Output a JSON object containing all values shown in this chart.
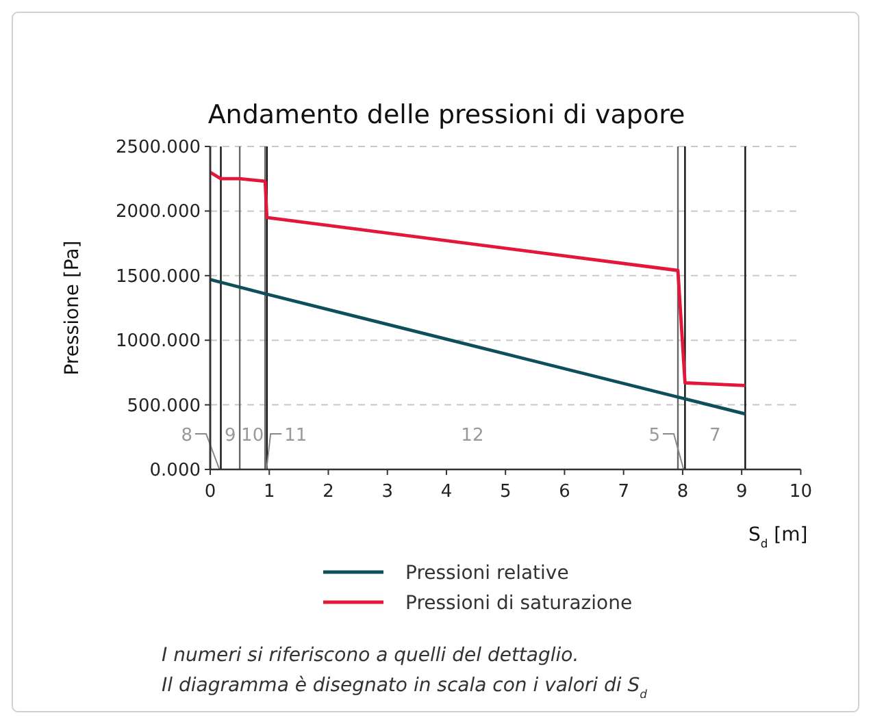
{
  "chart_data": {
    "type": "line",
    "title": "Andamento delle pressioni di vapore",
    "xlabel": "S$_{d}$ [m]",
    "ylabel": "Pressione [Pa]",
    "xlim": [
      0,
      10
    ],
    "xticks": [
      0,
      1,
      2,
      3,
      4,
      5,
      6,
      7,
      8,
      9,
      10
    ],
    "ylim": [
      0,
      2500
    ],
    "yticks": [
      {
        "value": 0,
        "label": "0.000"
      },
      {
        "value": 500,
        "label": "500.000"
      },
      {
        "value": 1000,
        "label": "1000.000"
      },
      {
        "value": 1500,
        "label": "1500.000"
      },
      {
        "value": 2000,
        "label": "2000.000"
      },
      {
        "value": 2500,
        "label": "2500.000"
      }
    ],
    "grid": "y",
    "legend": "bottom",
    "line_style": "solid",
    "marker": "none",
    "series": [
      {
        "name": "Pressioni relative",
        "color": "#0e4f5a",
        "x": [
          0,
          0.93,
          7.92,
          9.06
        ],
        "values": [
          1470,
          1360,
          560,
          430
        ]
      },
      {
        "name": "Pressioni di saturazione",
        "color": "#e3173a",
        "x": [
          0,
          0.18,
          0.5,
          0.93,
          0.96,
          7.92,
          8.04,
          9.06
        ],
        "values": [
          2300,
          2250,
          2250,
          2230,
          1950,
          1540,
          670,
          650
        ]
      }
    ],
    "ref_lines": [
      {
        "axis": "x",
        "value": 0,
        "color": "#111111"
      },
      {
        "axis": "x",
        "value": 0.18,
        "color": "#111111"
      },
      {
        "axis": "x",
        "value": 0.5,
        "color": "#666666"
      },
      {
        "axis": "x",
        "value": 0.93,
        "color": "#666666"
      },
      {
        "axis": "x",
        "value": 0.96,
        "color": "#111111"
      },
      {
        "axis": "x",
        "value": 7.92,
        "color": "#666666"
      },
      {
        "axis": "x",
        "value": 8.04,
        "color": "#111111"
      },
      {
        "axis": "x",
        "value": 9.06,
        "color": "#111111"
      }
    ],
    "annotations": [
      "8",
      "9",
      "10",
      "11",
      "12",
      "5",
      "7",
      "I numeri si riferiscono a quelli del dettaglio.",
      "Il diagramma è disegnato in scala con i valori di S$_{d}$"
    ]
  }
}
